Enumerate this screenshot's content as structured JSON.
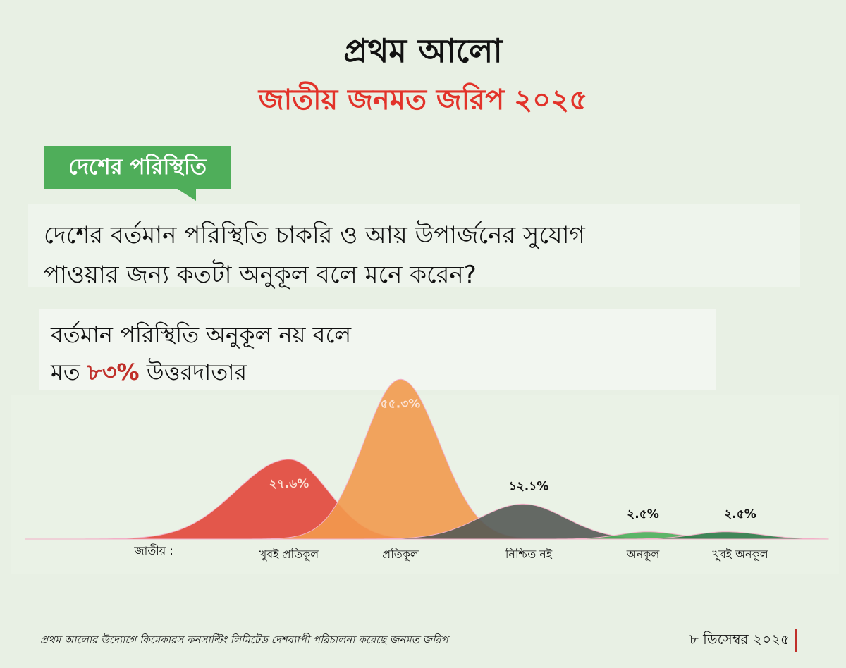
{
  "logo": "প্রথম আলো",
  "title": "জাতীয় জনমত জরিপ ২০২৫",
  "tag": "দেশের পরিস্থিতি",
  "question": [
    "দেশের বর্তমান পরিস্থিতি চাকরি ও আয় উপার্জনের সুযোগ",
    "পাওয়ার জন্য কতটা অনুকূল বলে মনে করেন?"
  ],
  "headline": {
    "line1": "বর্তমান পরিস্থিতি অনুকূল নয় বলে",
    "line2_before": "মত ",
    "highlight": "৮৩%",
    "line2_after": " উত্তরদাতার"
  },
  "chart_data": {
    "type": "density",
    "row_label": "জাতীয় :",
    "categories": [
      "খুবই প্রতিকূল",
      "প্রতিকূল",
      "নিশ্চিত নই",
      "অনকূল",
      "খুবই অনকূল"
    ],
    "values": [
      27.6,
      55.3,
      12.1,
      2.5,
      2.5
    ],
    "value_labels": [
      "২৭.৬%",
      "৫৫.৩%",
      "১২.১%",
      "২.৫%",
      "২.৫%"
    ],
    "colors": [
      "#e2463a",
      "#f29a4e",
      "#555a55",
      "#4cae5a",
      "#2e7a48"
    ]
  },
  "footer": {
    "note": "প্রথম আলোর উদ্যোগে কিমেকারস কনসাল্টিং লিমিটেড দেশব্যাপী পরিচালনা করেছে জনমত জরিপ",
    "date": "৮ ডিসেম্বর ২০২৫"
  }
}
